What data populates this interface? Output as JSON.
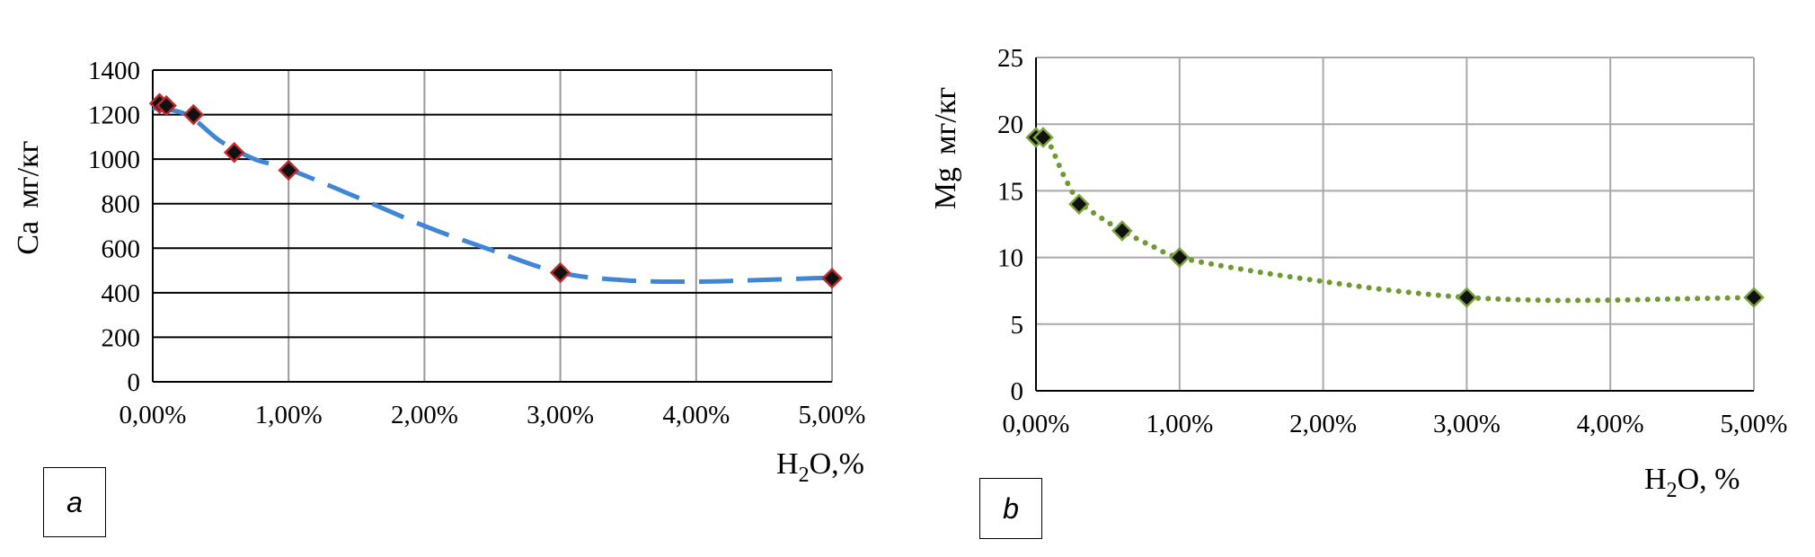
{
  "chart_data": [
    {
      "type": "scatter",
      "panel_label": "a",
      "ylabel_main": "Ca",
      "ylabel_unit": "мг/кг",
      "xlabel_main": "H",
      "xlabel_sub": "2",
      "xlabel_rest": "O,%",
      "x_tick_labels": [
        "0,00%",
        "1,00%",
        "2,00%",
        "3,00%",
        "4,00%",
        "5,00%"
      ],
      "y_tick_labels": [
        "0",
        "200",
        "400",
        "600",
        "800",
        "1000",
        "1200",
        "1400"
      ],
      "xlim": [
        0,
        5
      ],
      "ylim": [
        0,
        1400
      ],
      "grid": true,
      "series": [
        {
          "x": [
            0.05,
            0.1,
            0.3,
            0.6,
            1.0,
            3.0,
            5.0
          ],
          "y": [
            1250,
            1240,
            1200,
            1030,
            950,
            490,
            465
          ],
          "marker": "diamond",
          "marker_fill": "#111111",
          "marker_edge": "#c0282c"
        }
      ],
      "trendline": {
        "style": "dashed",
        "color": "#3f86d6",
        "x": [
          0,
          0.25,
          0.5,
          0.75,
          1.0,
          1.5,
          2.0,
          2.5,
          3.0,
          3.5,
          4.0,
          4.5,
          5.0
        ],
        "y": [
          1230,
          1200,
          1080,
          1000,
          955,
          830,
          700,
          590,
          490,
          455,
          450,
          458,
          468
        ]
      }
    },
    {
      "type": "scatter",
      "panel_label": "b",
      "ylabel_main": "Mg",
      "ylabel_unit": "мг/кг",
      "xlabel_main": "H",
      "xlabel_sub": "2",
      "xlabel_rest": "O,  %",
      "x_tick_labels": [
        "0,00%",
        "1,00%",
        "2,00%",
        "3,00%",
        "4,00%",
        "5,00%"
      ],
      "y_tick_labels": [
        "0",
        "5",
        "10",
        "15",
        "20",
        "25"
      ],
      "xlim": [
        0,
        5
      ],
      "ylim": [
        0,
        25
      ],
      "grid": true,
      "series": [
        {
          "x": [
            0.0,
            0.05,
            0.3,
            0.6,
            1.0,
            3.0,
            5.0
          ],
          "y": [
            19,
            19,
            14,
            12,
            10,
            7,
            7
          ],
          "marker": "diamond",
          "marker_fill": "#111111",
          "marker_edge": "#7aa23a"
        }
      ],
      "trendline": {
        "style": "dotted",
        "color": "#6f9a30",
        "x": [
          0,
          0.05,
          0.1,
          0.2,
          0.3,
          0.45,
          0.6,
          0.8,
          1.0,
          1.5,
          2.0,
          2.5,
          3.0,
          3.5,
          4.0,
          4.5,
          5.0
        ],
        "y": [
          19,
          19,
          18.4,
          16.0,
          14.2,
          13.0,
          12.0,
          10.9,
          10.0,
          9.0,
          8.2,
          7.5,
          7.0,
          6.8,
          6.8,
          6.9,
          7.0
        ]
      }
    }
  ]
}
